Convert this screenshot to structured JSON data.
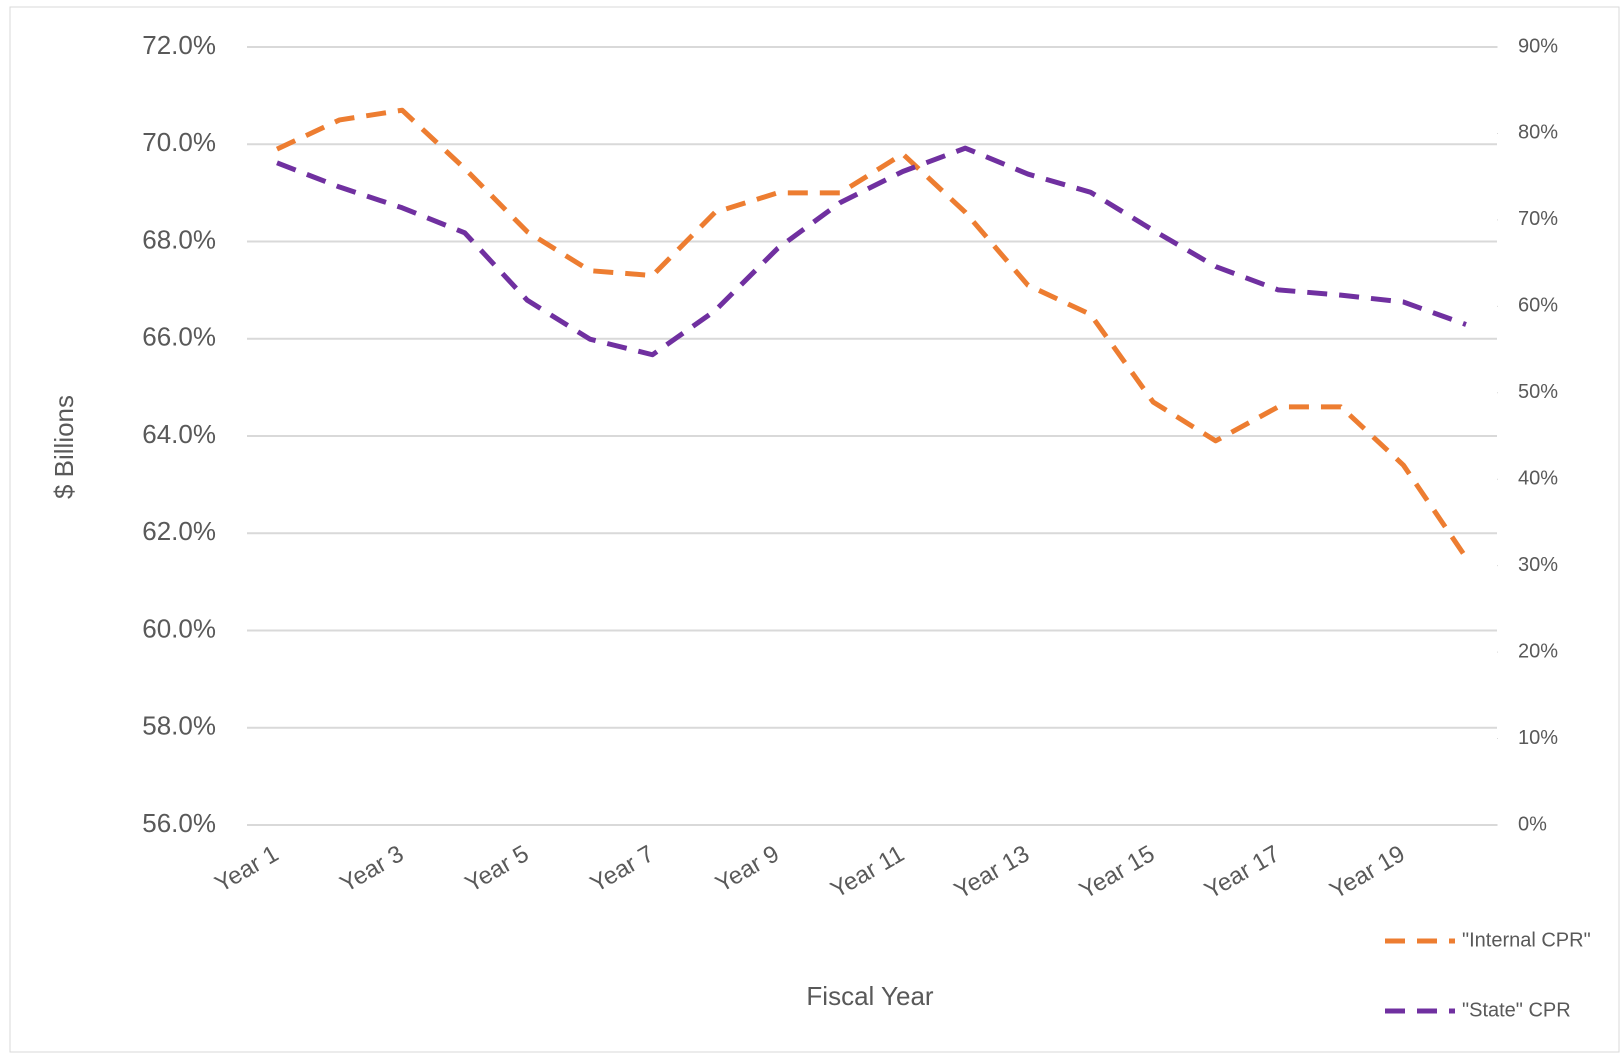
{
  "chart_data": {
    "type": "line",
    "xlabel": "Fiscal Year",
    "ylabel": "$ Billions",
    "categories": [
      "Year 1",
      null,
      "Year 3",
      null,
      "Year 5",
      null,
      "Year 7",
      null,
      "Year 9",
      null,
      "Year 11",
      null,
      "Year 13",
      null,
      "Year 15",
      null,
      "Year 17",
      null,
      "Year 19",
      null
    ],
    "series": [
      {
        "name": "\"Internal CPR\"",
        "color": "#ed7d31",
        "axis": "y",
        "values": [
          69.9,
          70.5,
          70.7,
          69.5,
          68.2,
          67.4,
          67.3,
          68.6,
          69.0,
          69.0,
          69.8,
          68.6,
          67.1,
          66.5,
          64.7,
          63.9,
          64.6,
          64.6,
          63.4,
          61.5
        ]
      },
      {
        "name": "\"State\" CPR",
        "color": "#7030a0",
        "axis": "y2",
        "values": [
          76.6,
          73.8,
          71.4,
          68.5,
          60.7,
          56.2,
          54.4,
          59.5,
          66.7,
          72.0,
          75.6,
          78.3,
          75.3,
          73.2,
          68.8,
          64.6,
          61.9,
          61.3,
          60.5,
          57.9
        ]
      }
    ],
    "ylim": [
      56,
      72
    ],
    "yticks": [
      {
        "value": 56,
        "label": "56.0%"
      },
      {
        "value": 58,
        "label": "58.0%"
      },
      {
        "value": 60,
        "label": "60.0%"
      },
      {
        "value": 62,
        "label": "62.0%"
      },
      {
        "value": 64,
        "label": "64.0%"
      },
      {
        "value": 66,
        "label": "66.0%"
      },
      {
        "value": 68,
        "label": "68.0%"
      },
      {
        "value": 70,
        "label": "70.0%"
      },
      {
        "value": 72,
        "label": "72.0%"
      }
    ],
    "y2lim": [
      0,
      90
    ],
    "y2ticks": [
      {
        "value": 0,
        "label": "0%"
      },
      {
        "value": 10,
        "label": "10%"
      },
      {
        "value": 20,
        "label": "20%"
      },
      {
        "value": 30,
        "label": "30%"
      },
      {
        "value": 40,
        "label": "40%"
      },
      {
        "value": 50,
        "label": "50%"
      },
      {
        "value": 60,
        "label": "60%"
      },
      {
        "value": 70,
        "label": "70%"
      },
      {
        "value": 80,
        "label": "80%"
      },
      {
        "value": 90,
        "label": "90%"
      }
    ],
    "grid": true,
    "legend": "bottom-right"
  }
}
